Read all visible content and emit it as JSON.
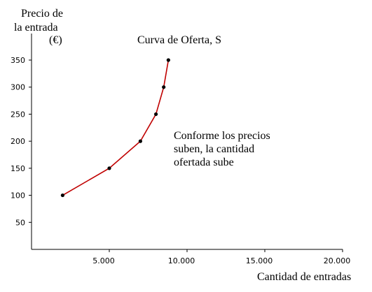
{
  "chart_data": {
    "type": "line",
    "title": "Curva de Oferta, S",
    "ylabel_lines": [
      "Precio de",
      "la entrada",
      "(€)"
    ],
    "xlabel": "Cantidad de entradas",
    "annotation_lines": [
      "Conforme los precios",
      "suben, la cantidad",
      "ofertada sube"
    ],
    "xlim": [
      0,
      20000
    ],
    "ylim": [
      0,
      350
    ],
    "x_ticks": [
      {
        "value": 5000,
        "label": "5.000"
      },
      {
        "value": 10000,
        "label": "10.000"
      },
      {
        "value": 15000,
        "label": "15.000"
      },
      {
        "value": 20000,
        "label": "20.000"
      }
    ],
    "y_ticks": [
      {
        "value": 50,
        "label": "50"
      },
      {
        "value": 100,
        "label": "100"
      },
      {
        "value": 150,
        "label": "150"
      },
      {
        "value": 200,
        "label": "200"
      },
      {
        "value": 250,
        "label": "250"
      },
      {
        "value": 300,
        "label": "300"
      },
      {
        "value": 350,
        "label": "350"
      }
    ],
    "series": [
      {
        "color": "#c00000",
        "marker_color": "#000000",
        "points": [
          {
            "x": 2000,
            "y": 100
          },
          {
            "x": 5000,
            "y": 150
          },
          {
            "x": 7000,
            "y": 200
          },
          {
            "x": 8000,
            "y": 250
          },
          {
            "x": 8500,
            "y": 300
          },
          {
            "x": 8800,
            "y": 350
          }
        ]
      }
    ]
  }
}
